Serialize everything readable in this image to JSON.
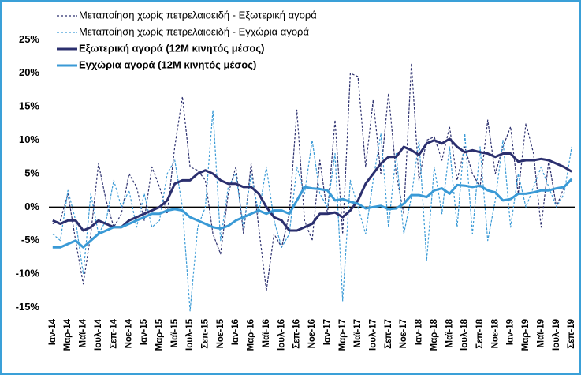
{
  "chart_data": {
    "type": "line",
    "categories": [
      "Ιαν-14",
      null,
      "Μαρ-14",
      null,
      "Μαϊ-14",
      null,
      "Ιουλ-14",
      null,
      "Σεπ-14",
      null,
      "Νοε-14",
      null,
      "Ιαν-15",
      null,
      "Μαρ-15",
      null,
      "Μαϊ-15",
      null,
      "Ιουλ-15",
      null,
      "Σεπ-15",
      null,
      "Νοε-15",
      null,
      "Ιαν-16",
      null,
      "Μαρ-16",
      null,
      "Μαϊ-16",
      null,
      "Ιουλ-16",
      null,
      "Σεπ-16",
      null,
      "Νοε-16",
      null,
      "Ιαν-17",
      null,
      "Μαρ-17",
      null,
      "Μαϊ-17",
      null,
      "Ιουλ-17",
      null,
      "Σεπ-17",
      null,
      "Νοε-17",
      null,
      "Ιαν-18",
      null,
      "Μαρ-18",
      null,
      "Μαϊ-18",
      null,
      "Ιουλ-18",
      null,
      "Σεπ-18",
      null,
      "Νοε-18",
      null,
      "Ιαν-19",
      null,
      "Μαρ-19",
      null,
      "Μαϊ-19",
      null,
      "Ιουλ-19",
      null,
      "Σεπ-19"
    ],
    "series": [
      {
        "name": "Μεταποίηση χωρίς πετρελαιοειδή - Εξωτερική αγορά",
        "color": "#2b2f6e",
        "line_style": "dashed",
        "values": [
          -2.5,
          -2,
          2,
          -5,
          -11.5,
          -4,
          6.5,
          1,
          -3,
          -1,
          5,
          3,
          -2,
          6,
          3,
          -1,
          9,
          16.5,
          6,
          5.5,
          4,
          -4,
          -7,
          2,
          6,
          -4,
          6.5,
          -3,
          -12.5,
          -4,
          -6,
          -1,
          14.5,
          -2,
          -5,
          7,
          -1,
          13,
          -4,
          20,
          19.5,
          6,
          16,
          5,
          17,
          5,
          -1,
          21.5,
          4,
          10,
          10.5,
          7,
          12,
          4,
          9,
          5,
          3,
          13,
          5,
          9,
          12,
          2,
          12.5,
          8,
          -3,
          7,
          0,
          3,
          4
        ]
      },
      {
        "name": "Μεταποίηση χωρίς πετρελαιοειδή - Εγχώρια αγορά",
        "color": "#3a9ad6",
        "line_style": "dashed",
        "values": [
          -4,
          -5,
          2.5,
          -2,
          -10,
          2,
          -4,
          -2,
          4,
          0,
          2.5,
          -3,
          2,
          -3,
          -2,
          5,
          7,
          0,
          -15.5,
          -3,
          0,
          14.5,
          -5,
          3,
          5,
          -3,
          5,
          -1,
          6,
          -2,
          -6,
          -4,
          6,
          2,
          10,
          2,
          0,
          8,
          -14,
          4,
          0,
          -4,
          4,
          11,
          -3,
          8,
          -4,
          1.5,
          10,
          -8,
          6,
          -1,
          9,
          -3,
          11,
          -4,
          9,
          -5,
          1,
          10,
          -3,
          5,
          0,
          3,
          6,
          3,
          0,
          2,
          9
        ]
      },
      {
        "name": "Εξωτερική αγορά (12Μ κινητός μέσος)",
        "color": "#2b2f6e",
        "line_style": "solid",
        "values": [
          -2,
          -2.5,
          -2,
          -2,
          -3.5,
          -3,
          -2,
          -2.5,
          -3,
          -3,
          -2,
          -1.5,
          -1,
          -0.5,
          0,
          1,
          3.5,
          4,
          4,
          5,
          5.5,
          5,
          4,
          3.5,
          3.5,
          3,
          3,
          2,
          0,
          -1.5,
          -2,
          -3.5,
          -3.5,
          -3,
          -2.5,
          -1,
          -1,
          -0.8,
          -1.5,
          -0.5,
          1,
          3.5,
          5,
          6.5,
          7.5,
          7.5,
          9,
          8.5,
          7.8,
          9.5,
          10,
          9.5,
          10.2,
          9,
          8.2,
          8.5,
          8.2,
          8,
          7.5,
          8,
          8,
          6.8,
          7,
          7,
          7.2,
          7,
          6.5,
          6,
          5.3
        ]
      },
      {
        "name": "Εγχώρια αγορά (12Μ κινητός μέσος)",
        "color": "#3a9ad6",
        "line_style": "solid",
        "values": [
          -6,
          -6,
          -5.5,
          -5,
          -6,
          -5,
          -4,
          -3.5,
          -3,
          -3,
          -2.5,
          -2,
          -1.5,
          -1,
          -1,
          -0.5,
          -0.3,
          -0.5,
          -1.5,
          -2,
          -2.5,
          -3,
          -3.2,
          -2.8,
          -2,
          -1.5,
          -1,
          -0.5,
          -1,
          -0.5,
          -0.5,
          -1,
          1,
          3,
          2.8,
          2.7,
          2.5,
          1,
          1.2,
          0.8,
          0.5,
          -0.2,
          0,
          0.2,
          -0.3,
          -0.2,
          0.5,
          1.8,
          1.8,
          1.5,
          2.5,
          2.8,
          2,
          3.3,
          3.2,
          3,
          3.2,
          2.5,
          2.2,
          1,
          1.2,
          2,
          2,
          2.2,
          2.5,
          2.5,
          2.8,
          3,
          4.2
        ]
      }
    ],
    "ylim": [
      -16,
      30
    ],
    "yticks": [
      {
        "value": -15,
        "label": "-15%"
      },
      {
        "value": -10,
        "label": "-10%"
      },
      {
        "value": -5,
        "label": "-5%"
      },
      {
        "value": 0,
        "label": "0%"
      },
      {
        "value": 5,
        "label": "5%"
      },
      {
        "value": 10,
        "label": "10%"
      },
      {
        "value": 15,
        "label": "15%"
      },
      {
        "value": 20,
        "label": "20%"
      },
      {
        "value": 25,
        "label": "25%"
      }
    ],
    "grid": false,
    "legend": "upper left"
  }
}
